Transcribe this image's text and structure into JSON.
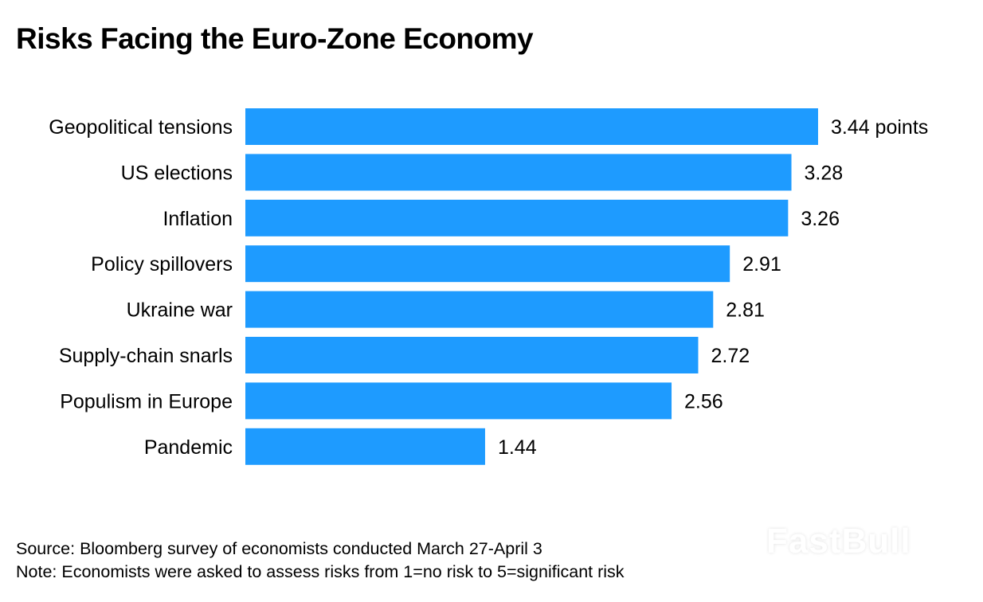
{
  "chart_data": {
    "type": "bar",
    "orientation": "horizontal",
    "title": "Risks Facing the Euro-Zone Economy",
    "categories": [
      "Geopolitical tensions",
      "US elections",
      "Inflation",
      "Policy spillovers",
      "Ukraine war",
      "Supply-chain snarls",
      "Populism in Europe",
      "Pandemic"
    ],
    "values": [
      3.44,
      3.28,
      3.26,
      2.91,
      2.81,
      2.72,
      2.56,
      1.44
    ],
    "value_labels": [
      "3.44 points",
      "3.28",
      "3.26",
      "2.91",
      "2.81",
      "2.72",
      "2.56",
      "1.44"
    ],
    "xlim": [
      0,
      5
    ],
    "grid": false,
    "bar_color": "#1e9bff"
  },
  "footer": {
    "source": "Source: Bloomberg survey of economists conducted March 27-April 3",
    "note": "Note: Economists were asked to assess risks from 1=no risk to 5=significant risk"
  },
  "watermark": "FastBull"
}
